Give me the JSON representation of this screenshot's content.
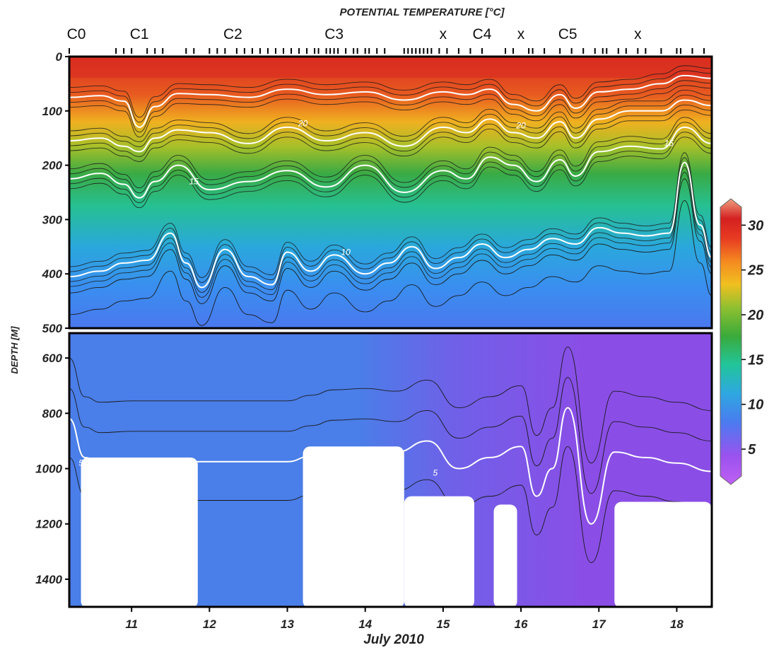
{
  "chart_data": {
    "type": "heatmap",
    "title": "POTENTIAL TEMPERATURE [°C]",
    "xlabel": "July 2010",
    "ylabel": "DEPTH [M]",
    "x_ticks": [
      "11",
      "12",
      "13",
      "14",
      "15",
      "16",
      "17",
      "18"
    ],
    "x_tick_values": [
      11,
      12,
      13,
      14,
      15,
      16,
      17,
      18
    ],
    "xlim": [
      10.2,
      18.45
    ],
    "ylim_upper": [
      0,
      500
    ],
    "ylim_lower": [
      510,
      1500
    ],
    "y_ticks_upper": [
      "0",
      "100",
      "200",
      "300",
      "400",
      "500"
    ],
    "y_tick_values_upper": [
      0,
      100,
      200,
      300,
      400,
      500
    ],
    "y_ticks_lower": [
      "600",
      "800",
      "1000",
      "1200",
      "1400"
    ],
    "y_tick_values_lower": [
      600,
      800,
      1000,
      1200,
      1400
    ],
    "stations": [
      {
        "label": "C0",
        "day": 10.2
      },
      {
        "label": "C1",
        "day": 11.1
      },
      {
        "label": "C2",
        "day": 12.3
      },
      {
        "label": "C3",
        "day": 13.6
      },
      {
        "label": "x",
        "day": 15.0
      },
      {
        "label": "C4",
        "day": 15.5
      },
      {
        "label": "x",
        "day": 16.0
      },
      {
        "label": "C5",
        "day": 16.6
      },
      {
        "label": "x",
        "day": 17.5
      }
    ],
    "cast_days": [
      10.2,
      10.8,
      10.9,
      11.0,
      11.2,
      11.3,
      11.4,
      11.7,
      11.8,
      12.0,
      12.1,
      12.2,
      12.35,
      12.45,
      12.55,
      12.65,
      12.75,
      12.85,
      12.95,
      13.05,
      13.15,
      13.25,
      13.35,
      13.4,
      13.5,
      13.55,
      13.6,
      13.65,
      13.75,
      13.85,
      13.9,
      14.0,
      14.05,
      14.15,
      14.25,
      14.5,
      14.55,
      14.6,
      14.65,
      14.7,
      14.75,
      14.8,
      14.85,
      14.95,
      15.05,
      15.2,
      15.35,
      15.5,
      15.8,
      15.9,
      16.1,
      16.15,
      16.3,
      16.5,
      16.65,
      16.8,
      16.95,
      17.05,
      17.1,
      17.25,
      17.35,
      17.5,
      17.6,
      17.8,
      18.0,
      18.05,
      18.2,
      18.35
    ],
    "colorbar": {
      "ticks": [
        "30",
        "25",
        "20",
        "15",
        "10",
        "5"
      ],
      "values": [
        30,
        25,
        20,
        15,
        10,
        5
      ],
      "range": [
        2,
        32
      ],
      "colors": [
        "#b45cf0",
        "#7a50e8",
        "#4a7cf0",
        "#2ab0d8",
        "#22c59a",
        "#48b84a",
        "#90c030",
        "#f0c020",
        "#f58a20",
        "#e83c22",
        "#d42020",
        "#f0a080"
      ]
    },
    "isotherm_labels": [
      "20",
      "15",
      "10",
      "5"
    ],
    "isotherms": [
      {
        "value": 25,
        "days": [
          10.2,
          10.6,
          10.9,
          11.1,
          11.3,
          11.6,
          12.0,
          12.5,
          13.0,
          13.5,
          14.0,
          14.5,
          15.0,
          15.3,
          15.6,
          15.9,
          16.2,
          16.5,
          16.7,
          17.0,
          17.4,
          17.8,
          18.1,
          18.45
        ],
        "depths": [
          75,
          72,
          82,
          130,
          92,
          68,
          70,
          75,
          60,
          70,
          65,
          80,
          65,
          70,
          60,
          88,
          100,
          70,
          95,
          65,
          60,
          50,
          35,
          40
        ]
      },
      {
        "value": 20,
        "days": [
          10.2,
          10.6,
          10.9,
          11.1,
          11.3,
          11.6,
          12.0,
          12.5,
          13.0,
          13.5,
          14.0,
          14.5,
          15.0,
          15.3,
          15.6,
          15.9,
          16.2,
          16.5,
          16.7,
          17.0,
          17.4,
          17.8,
          18.1,
          18.45
        ],
        "depths": [
          155,
          150,
          165,
          175,
          150,
          135,
          140,
          160,
          130,
          155,
          140,
          165,
          130,
          140,
          115,
          140,
          150,
          120,
          150,
          115,
          100,
          100,
          80,
          90
        ]
      },
      {
        "value": 15,
        "days": [
          10.2,
          10.6,
          10.9,
          11.1,
          11.3,
          11.6,
          12.0,
          12.5,
          13.0,
          13.5,
          14.0,
          14.5,
          15.0,
          15.3,
          15.6,
          15.9,
          16.2,
          16.5,
          16.7,
          17.0,
          17.4,
          17.8,
          18.1,
          18.45
        ],
        "depths": [
          225,
          215,
          235,
          260,
          230,
          200,
          245,
          230,
          210,
          240,
          200,
          250,
          210,
          225,
          185,
          200,
          230,
          190,
          220,
          175,
          165,
          170,
          130,
          160
        ]
      },
      {
        "value": 10,
        "days": [
          10.2,
          10.6,
          10.9,
          11.2,
          11.5,
          11.7,
          11.9,
          12.2,
          12.5,
          12.8,
          13.0,
          13.3,
          13.6,
          14.0,
          14.3,
          14.6,
          14.9,
          15.2,
          15.5,
          15.8,
          16.1,
          16.4,
          16.7,
          17.0,
          17.3,
          17.6,
          17.9,
          18.1,
          18.3,
          18.45
        ],
        "depths": [
          405,
          395,
          380,
          375,
          325,
          380,
          425,
          355,
          405,
          420,
          360,
          395,
          365,
          400,
          380,
          350,
          390,
          370,
          345,
          370,
          355,
          335,
          345,
          315,
          325,
          330,
          325,
          195,
          310,
          370
        ]
      },
      {
        "value": 5,
        "days": [
          10.2,
          10.4,
          10.6,
          11.0,
          12.0,
          13.0,
          13.3,
          13.6,
          14.0,
          14.4,
          14.8,
          15.2,
          15.6,
          16.0,
          16.2,
          16.4,
          16.6,
          16.9,
          17.2,
          17.6,
          18.0,
          18.45
        ],
        "depths": [
          820,
          960,
          980,
          975,
          975,
          975,
          955,
          935,
          930,
          940,
          900,
          1000,
          960,
          920,
          1100,
          1000,
          780,
          1200,
          940,
          960,
          980,
          1010
        ]
      }
    ],
    "no_data_regions": [
      {
        "day_start": 10.35,
        "day_end": 11.85,
        "depth_start": 960,
        "depth_end": 1500
      },
      {
        "day_start": 13.2,
        "day_end": 14.5,
        "depth_start": 920,
        "depth_end": 1500
      },
      {
        "day_start": 14.5,
        "day_end": 15.4,
        "depth_start": 1100,
        "depth_end": 1500
      },
      {
        "day_start": 15.65,
        "day_end": 15.95,
        "depth_start": 1130,
        "depth_end": 1500
      },
      {
        "day_start": 17.2,
        "day_end": 18.45,
        "depth_start": 1120,
        "depth_end": 1500
      }
    ],
    "region_colors": {
      "shallow_lower_left": "#4a7ee8",
      "deep_lower_right": "#8a4ee6"
    }
  }
}
